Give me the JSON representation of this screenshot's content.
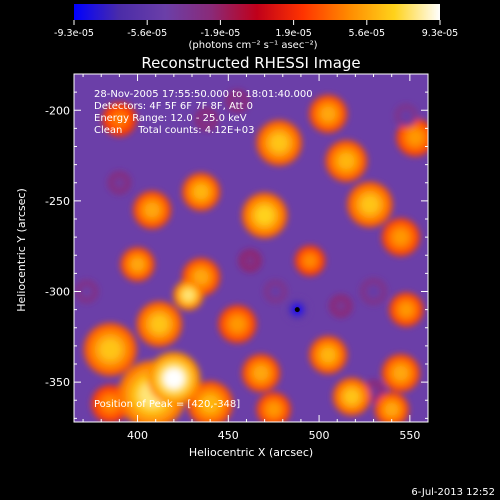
{
  "colorbar": {
    "tick_labels": [
      "-9.3e-05",
      "-5.6e-05",
      "-1.9e-05",
      "1.9e-05",
      "5.6e-05",
      "9.3e-05"
    ],
    "units_line": "(photons cm⁻² s⁻¹ asec⁻²)",
    "colors": [
      "#0000ff",
      "#4b2ca8",
      "#6b3fa8",
      "#8a2a78",
      "#c0001a",
      "#ff3300",
      "#ff8a00",
      "#ffd21a",
      "#ffffff"
    ]
  },
  "plot": {
    "title": "Reconstructed RHESSI Image",
    "info_lines": [
      "28-Nov-2005 17:55:50.000 to 18:01:40.000",
      "Detectors: 4F 5F 6F 7F 8F, Att 0",
      "Energy Range: 12.0 - 25.0 keV",
      "Clean     Total counts: 4.12E+03"
    ],
    "peak_label": "Position of Peak = [420,-348]",
    "xlabel": "Heliocentric X (arcsec)",
    "ylabel": "Heliocentric Y (arcsec)",
    "x_tick_labels": [
      "400",
      "450",
      "500",
      "550"
    ],
    "y_tick_labels": [
      "-200",
      "-250",
      "-300",
      "-350"
    ],
    "frame_color": "#ffffff",
    "background_color": "#6b3fa8"
  },
  "footer": {
    "date": "6-Jul-2013 12:52"
  },
  "chart_data": {
    "type": "heatmap",
    "title": "Reconstructed RHESSI Image",
    "xlabel": "Heliocentric X (arcsec)",
    "ylabel": "Heliocentric Y (arcsec)",
    "xlim": [
      365,
      560
    ],
    "ylim": [
      -372,
      -180
    ],
    "x_ticks": [
      400,
      450,
      500,
      550
    ],
    "y_ticks": [
      -200,
      -250,
      -300,
      -350
    ],
    "color_range": [
      -9.3e-05,
      9.3e-05
    ],
    "peak_position": [
      420,
      -348
    ],
    "blobs": [
      {
        "x": 420,
        "y": -348,
        "level": 1.0,
        "r": 14
      },
      {
        "x": 408,
        "y": -357,
        "level": 0.85,
        "r": 18
      },
      {
        "x": 385,
        "y": -332,
        "level": 0.7,
        "r": 14
      },
      {
        "x": 428,
        "y": -302,
        "level": 0.85,
        "r": 8
      },
      {
        "x": 412,
        "y": -318,
        "level": 0.7,
        "r": 12
      },
      {
        "x": 400,
        "y": -285,
        "level": 0.6,
        "r": 9
      },
      {
        "x": 435,
        "y": -292,
        "level": 0.6,
        "r": 10
      },
      {
        "x": 408,
        "y": -255,
        "level": 0.6,
        "r": 10
      },
      {
        "x": 435,
        "y": -245,
        "level": 0.65,
        "r": 10
      },
      {
        "x": 470,
        "y": -258,
        "level": 0.75,
        "r": 12
      },
      {
        "x": 478,
        "y": -218,
        "level": 0.7,
        "r": 12
      },
      {
        "x": 505,
        "y": -202,
        "level": 0.6,
        "r": 10
      },
      {
        "x": 515,
        "y": -228,
        "level": 0.65,
        "r": 11
      },
      {
        "x": 528,
        "y": -252,
        "level": 0.7,
        "r": 12
      },
      {
        "x": 545,
        "y": -270,
        "level": 0.55,
        "r": 10
      },
      {
        "x": 495,
        "y": -283,
        "level": 0.5,
        "r": 8
      },
      {
        "x": 455,
        "y": -318,
        "level": 0.55,
        "r": 10
      },
      {
        "x": 468,
        "y": -345,
        "level": 0.6,
        "r": 10
      },
      {
        "x": 440,
        "y": -362,
        "level": 0.65,
        "r": 12
      },
      {
        "x": 475,
        "y": -365,
        "level": 0.55,
        "r": 9
      },
      {
        "x": 505,
        "y": -335,
        "level": 0.65,
        "r": 10
      },
      {
        "x": 518,
        "y": -358,
        "level": 0.7,
        "r": 10
      },
      {
        "x": 545,
        "y": -345,
        "level": 0.6,
        "r": 10
      },
      {
        "x": 548,
        "y": -310,
        "level": 0.55,
        "r": 9
      },
      {
        "x": 553,
        "y": -215,
        "level": 0.55,
        "r": 10
      },
      {
        "x": 540,
        "y": -365,
        "level": 0.6,
        "r": 9
      },
      {
        "x": 390,
        "y": -205,
        "level": 0.45,
        "r": 9
      },
      {
        "x": 385,
        "y": -362,
        "level": 0.5,
        "r": 10
      },
      {
        "x": 488,
        "y": -310,
        "level": -1.0,
        "r": 6
      },
      {
        "x": 476,
        "y": -300,
        "level": -0.55,
        "r": 6
      },
      {
        "x": 530,
        "y": -300,
        "level": -0.55,
        "r": 7
      },
      {
        "x": 512,
        "y": -308,
        "level": -0.4,
        "r": 6
      },
      {
        "x": 462,
        "y": -283,
        "level": -0.35,
        "r": 6
      },
      {
        "x": 372,
        "y": -300,
        "level": -0.5,
        "r": 6
      },
      {
        "x": 390,
        "y": -240,
        "level": -0.45,
        "r": 6
      },
      {
        "x": 438,
        "y": -205,
        "level": -0.4,
        "r": 6
      },
      {
        "x": 455,
        "y": -195,
        "level": -0.4,
        "r": 6
      },
      {
        "x": 548,
        "y": -203,
        "level": -0.55,
        "r": 6
      },
      {
        "x": 530,
        "y": -355,
        "level": -0.4,
        "r": 6
      }
    ],
    "marker": {
      "x": 488,
      "y": -310
    }
  }
}
